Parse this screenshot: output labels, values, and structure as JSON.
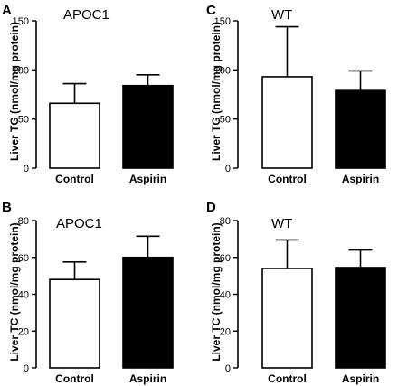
{
  "chart_data": [
    {
      "panel": "A",
      "type": "bar",
      "title": "APOC1",
      "ylabel": "Liver TG (nmol/mg protein)",
      "categories": [
        "Control",
        "Aspirin"
      ],
      "values": [
        66,
        84
      ],
      "errors": [
        20,
        11
      ],
      "bar_colors": [
        "#ffffff",
        "#000000"
      ],
      "ylim": [
        0,
        150
      ],
      "yticks": [
        0,
        50,
        100,
        150
      ]
    },
    {
      "panel": "B",
      "type": "bar",
      "title": "APOC1",
      "ylabel": "Liver TC (nmol/mg protein)",
      "categories": [
        "Control",
        "Aspirin"
      ],
      "values": [
        48,
        60
      ],
      "errors": [
        9.5,
        11.5
      ],
      "bar_colors": [
        "#ffffff",
        "#000000"
      ],
      "ylim": [
        0,
        80
      ],
      "yticks": [
        0,
        20,
        40,
        60,
        80
      ]
    },
    {
      "panel": "C",
      "type": "bar",
      "title": "WT",
      "ylabel": "Liver TG (nmol/mg protein)",
      "categories": [
        "Control",
        "Aspirin"
      ],
      "values": [
        93,
        79
      ],
      "errors": [
        51,
        20
      ],
      "bar_colors": [
        "#ffffff",
        "#000000"
      ],
      "ylim": [
        0,
        150
      ],
      "yticks": [
        0,
        50,
        100,
        150
      ]
    },
    {
      "panel": "D",
      "type": "bar",
      "title": "WT",
      "ylabel": "Liver TC (nmol/mg protein)",
      "categories": [
        "Control",
        "Aspirin"
      ],
      "values": [
        54,
        54.5
      ],
      "errors": [
        15.5,
        9.5
      ],
      "bar_colors": [
        "#ffffff",
        "#000000"
      ],
      "ylim": [
        0,
        80
      ],
      "yticks": [
        0,
        20,
        40,
        60,
        80
      ]
    }
  ]
}
